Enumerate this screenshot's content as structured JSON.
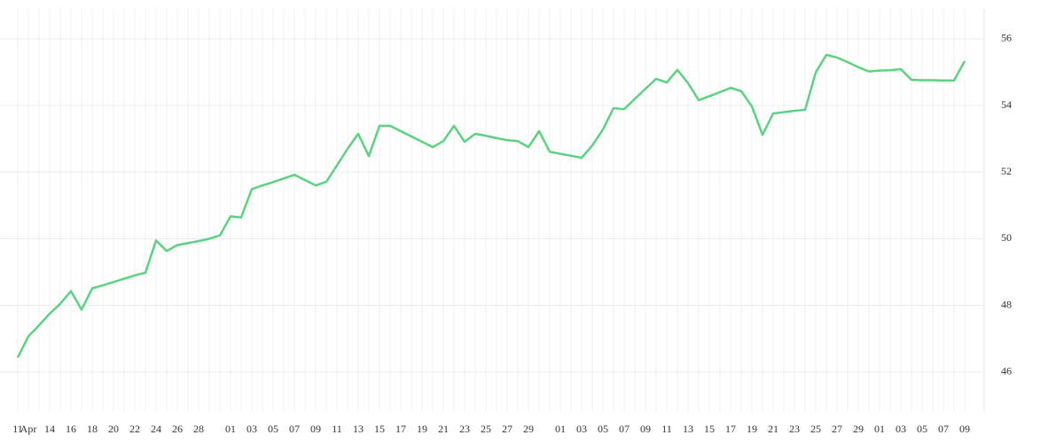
{
  "chart_data": {
    "type": "line",
    "color": "#5ad27f",
    "grid": true,
    "categories": [
      "11",
      "Apr",
      null,
      "14",
      null,
      "16",
      null,
      "18",
      null,
      "20",
      null,
      "22",
      null,
      "24",
      null,
      "26",
      null,
      "28",
      null,
      null,
      "01",
      null,
      "03",
      null,
      "05",
      null,
      "07",
      null,
      "09",
      null,
      "11",
      null,
      "13",
      null,
      "15",
      null,
      "17",
      null,
      "19",
      null,
      "21",
      null,
      "23",
      null,
      "25",
      null,
      "27",
      null,
      "29",
      null,
      null,
      "01",
      null,
      "03",
      null,
      "05",
      null,
      "07",
      null,
      "09",
      null,
      "11",
      null,
      "13",
      null,
      "15",
      null,
      "17",
      null,
      "19",
      null,
      "21",
      null,
      "23",
      null,
      "25",
      null,
      "27",
      null,
      "29",
      null,
      "01",
      null,
      "03",
      null,
      "05",
      null,
      "07",
      null,
      "09"
    ],
    "values": [
      46.43,
      47.07,
      47.4,
      47.75,
      48.05,
      48.43,
      47.87,
      48.51,
      48.6,
      48.7,
      48.8,
      48.9,
      48.98,
      49.95,
      49.63,
      49.81,
      49.87,
      49.93,
      50.0,
      50.1,
      50.67,
      50.64,
      51.49,
      51.6,
      51.7,
      51.81,
      51.92,
      51.76,
      51.6,
      51.71,
      52.2,
      52.7,
      53.15,
      52.48,
      53.39,
      53.39,
      53.23,
      53.07,
      52.91,
      52.75,
      52.93,
      53.39,
      52.91,
      53.15,
      53.09,
      53.02,
      52.96,
      52.93,
      52.75,
      53.23,
      52.61,
      52.55,
      52.49,
      52.43,
      52.8,
      53.28,
      53.92,
      53.89,
      54.2,
      54.5,
      54.8,
      54.69,
      55.07,
      54.67,
      54.16,
      54.28,
      54.4,
      54.53,
      54.43,
      53.97,
      53.12,
      53.76,
      53.8,
      53.84,
      53.87,
      54.99,
      55.52,
      55.44,
      55.3,
      55.15,
      55.02,
      55.05,
      55.06,
      55.09,
      54.77,
      54.76,
      54.76,
      54.75,
      54.75,
      55.33
    ],
    "ylim": [
      44.8,
      56.9
    ],
    "yticks": [
      46,
      48,
      50,
      52,
      54,
      56
    ]
  }
}
